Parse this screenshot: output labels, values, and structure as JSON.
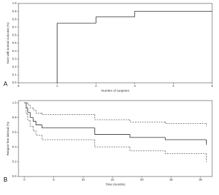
{
  "chart_data": [
    {
      "type": "step",
      "label": "A",
      "x_label": "Number of surgeries",
      "y_label": "Sore with normal outcome (%)",
      "xlim": [
        0,
        5
      ],
      "xticks": [
        0,
        1,
        2,
        3,
        4,
        5
      ],
      "ylim": [
        0,
        1
      ],
      "yticks": [
        {
          "value": 0,
          "label": "0.0"
        },
        0.1,
        0.2,
        0.3,
        0.4,
        0.5,
        0.6,
        0.7,
        0.8,
        0.9,
        {
          "value": 1,
          "label": "1.0"
        }
      ],
      "series": [
        {
          "color": "#222222",
          "line_style": "solid",
          "x": [
            1,
            1,
            2,
            3,
            5
          ],
          "values": [
            0,
            0.75,
            0.83,
            0.9,
            0.9
          ]
        }
      ]
    },
    {
      "type": "step",
      "label": "B",
      "x_label": "Time (months)",
      "y_label": "Relapse-free interval (%)",
      "xlim": [
        -1,
        32
      ],
      "xticks": [
        0,
        5,
        10,
        15,
        20,
        25,
        30
      ],
      "ylim": [
        0,
        1.03
      ],
      "yticks": [
        {
          "value": 0,
          "label": "0.0"
        },
        0.2,
        0.4,
        0.6,
        0.8,
        {
          "value": 1,
          "label": "1.0"
        }
      ],
      "series": [
        {
          "color": "#222222",
          "line_style": "solid",
          "x": [
            0,
            0.3,
            0.6,
            1,
            1.5,
            2,
            3,
            12,
            18,
            24,
            31
          ],
          "values": [
            1,
            0.93,
            0.87,
            0.8,
            0.75,
            0.7,
            0.66,
            0.57,
            0.53,
            0.5,
            0.43
          ]
        },
        {
          "color": "#555555",
          "line_style": "dashed",
          "x": [
            0,
            0.3,
            0.6,
            1,
            1.5,
            2,
            3,
            12,
            18,
            24,
            31
          ],
          "values": [
            1,
            1,
            0.97,
            0.93,
            0.9,
            0.86,
            0.84,
            0.77,
            0.74,
            0.72,
            0.68
          ]
        },
        {
          "color": "#555555",
          "line_style": "dashed",
          "x": [
            0,
            0.3,
            0.6,
            1,
            1.5,
            2,
            3,
            12,
            18,
            24,
            31
          ],
          "values": [
            1,
            0.85,
            0.76,
            0.68,
            0.62,
            0.56,
            0.5,
            0.4,
            0.35,
            0.31,
            0.2
          ]
        }
      ]
    }
  ]
}
